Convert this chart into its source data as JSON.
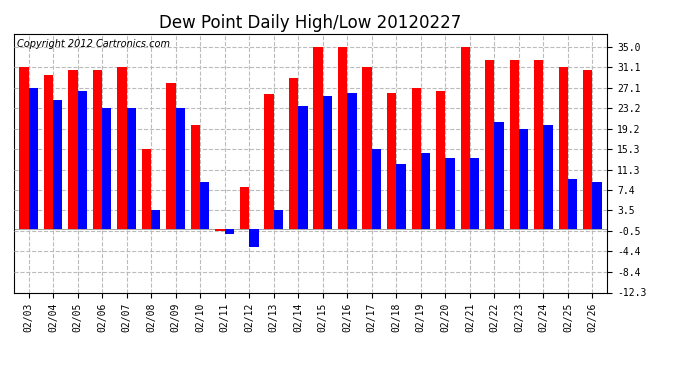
{
  "title": "Dew Point Daily High/Low 20120227",
  "copyright": "Copyright 2012 Cartronics.com",
  "dates": [
    "02/03",
    "02/04",
    "02/05",
    "02/06",
    "02/07",
    "02/08",
    "02/09",
    "02/10",
    "02/11",
    "02/12",
    "02/13",
    "02/14",
    "02/15",
    "02/16",
    "02/17",
    "02/18",
    "02/19",
    "02/20",
    "02/21",
    "02/22",
    "02/23",
    "02/24",
    "02/25",
    "02/26"
  ],
  "highs": [
    31.1,
    29.5,
    30.5,
    30.5,
    31.1,
    15.3,
    28.0,
    20.0,
    -0.5,
    8.0,
    26.0,
    29.0,
    35.0,
    35.0,
    31.1,
    26.1,
    27.1,
    26.5,
    35.0,
    32.5,
    32.5,
    32.5,
    31.1,
    30.5
  ],
  "lows": [
    27.1,
    24.8,
    26.5,
    23.2,
    23.2,
    3.5,
    23.2,
    9.0,
    -1.0,
    -3.5,
    3.5,
    23.5,
    25.5,
    26.1,
    15.3,
    12.5,
    14.5,
    13.5,
    13.5,
    20.5,
    19.2,
    20.0,
    9.5,
    9.0
  ],
  "ylim_min": -12.3,
  "ylim_max": 37.5,
  "yticks": [
    35.0,
    31.1,
    27.1,
    23.2,
    19.2,
    15.3,
    11.3,
    7.4,
    3.5,
    -0.5,
    -4.4,
    -8.4,
    -12.3
  ],
  "bar_width": 0.38,
  "high_color": "#ff0000",
  "low_color": "#0000ff",
  "bg_color": "#ffffff",
  "grid_color": "#bbbbbb",
  "title_fontsize": 12,
  "tick_fontsize": 7,
  "copyright_fontsize": 7
}
